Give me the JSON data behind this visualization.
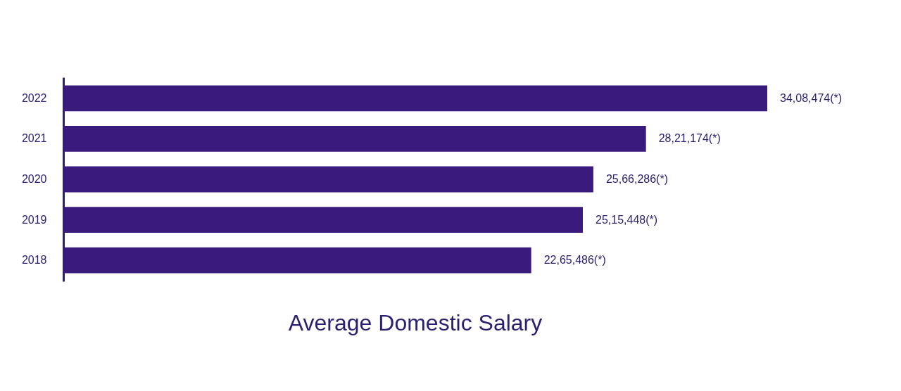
{
  "chart_data": {
    "type": "bar",
    "orientation": "horizontal",
    "title": "Average Domestic Salary",
    "categories": [
      "2022",
      "2021",
      "2020",
      "2019",
      "2018"
    ],
    "values": [
      3408474,
      2821174,
      2566286,
      2515448,
      2265486
    ],
    "value_labels": [
      "34,08,474(*)",
      "28,21,174(*)",
      "25,66,286(*)",
      "25,15,448(*)",
      "22,65,486(*)"
    ],
    "color": "#3a1a7c",
    "grid": false
  }
}
